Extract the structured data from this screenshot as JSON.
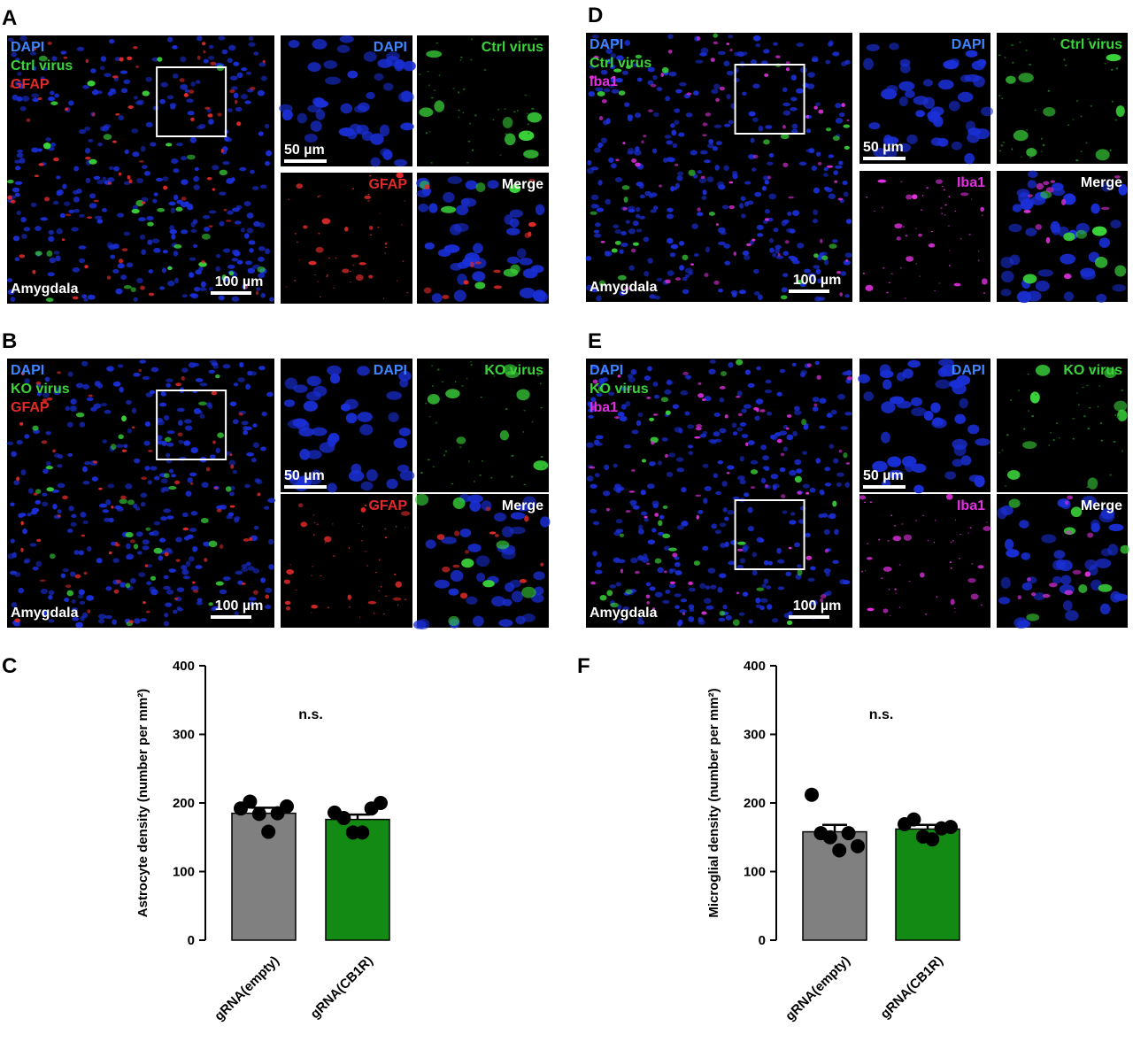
{
  "panels": [
    {
      "letter": "A",
      "channels": [
        "DAPI",
        "Ctrl virus",
        "GFAP"
      ],
      "colors": [
        "#3d86ff",
        "#3ad43a",
        "#e02a2a"
      ],
      "region": "Amygdala",
      "scale": "100 µm",
      "insets": [
        "DAPI",
        "Ctrl virus",
        "GFAP",
        "Merge"
      ],
      "inset_scale": "50 µm"
    },
    {
      "letter": "B",
      "channels": [
        "DAPI",
        "KO virus",
        "GFAP"
      ],
      "colors": [
        "#3d86ff",
        "#3ad43a",
        "#e02a2a"
      ],
      "region": "Amygdala",
      "scale": "100 µm",
      "insets": [
        "DAPI",
        "KO virus",
        "GFAP",
        "Merge"
      ],
      "inset_scale": "50 µm"
    },
    {
      "letter": "D",
      "channels": [
        "DAPI",
        "Ctrl virus",
        "Iba1"
      ],
      "colors": [
        "#3d86ff",
        "#3ad43a",
        "#e030e0"
      ],
      "region": "Amygdala",
      "scale": "100 µm",
      "insets": [
        "DAPI",
        "Ctrl virus",
        "Iba1",
        "Merge"
      ],
      "inset_scale": "50 µm"
    },
    {
      "letter": "E",
      "channels": [
        "DAPI",
        "KO virus",
        "Iba1"
      ],
      "colors": [
        "#3d86ff",
        "#3ad43a",
        "#e030e0"
      ],
      "region": "Amygdala",
      "scale": "100 µm",
      "insets": [
        "DAPI",
        "KO virus",
        "Iba1",
        "Merge"
      ],
      "inset_scale": "50 µm"
    }
  ],
  "chart_data": [
    {
      "type": "bar",
      "label": "C",
      "y_label": "Astrocyte density (number per mm²)",
      "annotation": "n.s.",
      "categories": [
        "gRNA(empty)",
        "gRNA(CB1R)"
      ],
      "values": [
        185,
        176
      ],
      "errors": [
        8,
        7
      ],
      "colors": [
        "#808080",
        "#138a13"
      ],
      "points": [
        [
          192,
          202,
          184,
          158,
          185,
          195
        ],
        [
          186,
          178,
          157,
          157,
          192,
          200
        ]
      ],
      "ylim": [
        0,
        400
      ],
      "yticks": [
        0,
        100,
        200,
        300,
        400
      ]
    },
    {
      "type": "bar",
      "label": "F",
      "y_label": "Microglial  density (number per mm²)",
      "annotation": "n.s.",
      "categories": [
        "gRNA(empty)",
        "gRNA(CB1R)"
      ],
      "values": [
        158,
        162
      ],
      "errors": [
        10,
        6
      ],
      "colors": [
        "#808080",
        "#138a13"
      ],
      "points": [
        [
          212,
          156,
          150,
          131,
          156,
          137
        ],
        [
          169,
          176,
          151,
          147,
          163,
          165
        ]
      ],
      "ylim": [
        0,
        400
      ],
      "yticks": [
        0,
        100,
        200,
        300,
        400
      ]
    }
  ]
}
